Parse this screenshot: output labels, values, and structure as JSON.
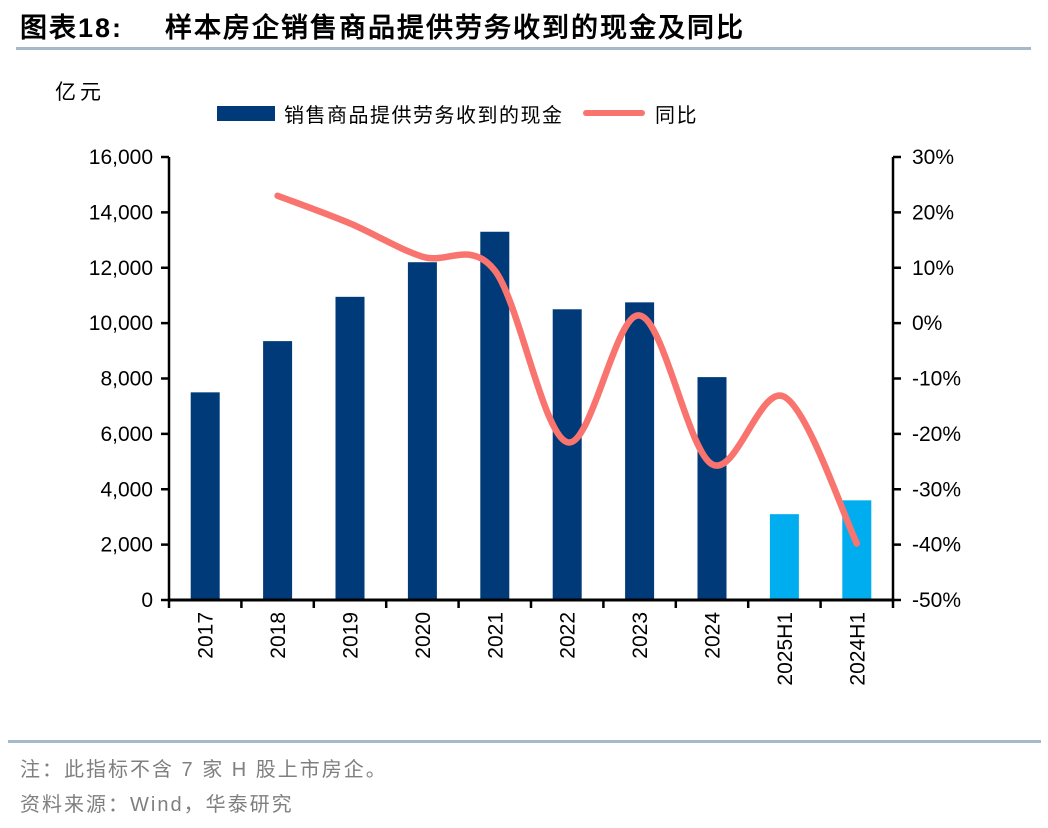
{
  "header": {
    "chart_no": "图表18:",
    "title": "样本房企销售商品提供劳务收到的现金及同比"
  },
  "chart_data": {
    "type": "bar+line",
    "title": "样本房企销售商品提供劳务收到的现金及同比",
    "unit_label": "亿元",
    "categories": [
      "2017",
      "2018",
      "2019",
      "2020",
      "2021",
      "2022",
      "2023",
      "2024",
      "2025H1",
      "2024H1"
    ],
    "series": [
      {
        "name": "销售商品提供劳务收到的现金",
        "type": "bar",
        "axis": "left",
        "values": [
          7500,
          9350,
          10950,
          12200,
          13300,
          10500,
          10750,
          8050,
          3100,
          3600
        ]
      },
      {
        "name": "同比",
        "type": "line",
        "axis": "right",
        "values": [
          null,
          23,
          18,
          12,
          9.5,
          -21.5,
          1.4,
          -25.5,
          -13.3,
          -39.8
        ]
      }
    ],
    "left_axis": {
      "min": 0,
      "max": 16000,
      "step": 2000,
      "tick_format": "thousands"
    },
    "right_axis": {
      "min": -50,
      "max": 30,
      "step": 10,
      "tick_format": "percent"
    },
    "colors": {
      "bar": "#003a78",
      "bar_highlight": "#00aeef",
      "highlight_indices": [
        8,
        9
      ],
      "line": "#f9746e",
      "axis": "#000000"
    },
    "legend_position": "top",
    "grid": false
  },
  "footer": {
    "note": "注：此指标不含 7 家 H 股上市房企。",
    "source": "资料来源：Wind，华泰研究"
  }
}
